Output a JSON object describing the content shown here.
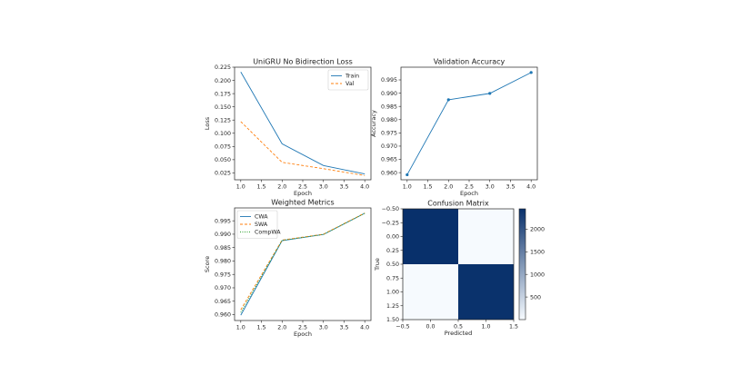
{
  "chart_data": [
    {
      "type": "line",
      "title": "UniGRU No Bidirection Loss",
      "xlabel": "Epoch",
      "ylabel": "Loss",
      "x": [
        1,
        2,
        3,
        4
      ],
      "series": [
        {
          "name": "Train",
          "values": [
            0.216,
            0.08,
            0.039,
            0.023
          ],
          "color": "#1f77b4",
          "dash": "solid"
        },
        {
          "name": "Val",
          "values": [
            0.122,
            0.045,
            0.033,
            0.02
          ],
          "color": "#ff7f0e",
          "dash": "dashed"
        }
      ],
      "xlim": [
        0.85,
        4.15
      ],
      "ylim": [
        0.012,
        0.225
      ],
      "xticks": [
        "1.0",
        "1.5",
        "2.0",
        "2.5",
        "3.0",
        "3.5",
        "4.0"
      ],
      "yticks": [
        "0.025",
        "0.050",
        "0.075",
        "0.100",
        "0.125",
        "0.150",
        "0.175",
        "0.200",
        "0.225"
      ],
      "legend": "top-right",
      "grid": false
    },
    {
      "type": "line",
      "title": "Validation Accuracy",
      "xlabel": "Epoch",
      "ylabel": "Accuracy",
      "x": [
        1,
        2,
        3,
        4
      ],
      "series": [
        {
          "values": [
            0.9592,
            0.9875,
            0.9899,
            0.9978
          ],
          "color": "#1f77b4",
          "dash": "solid",
          "markers": true
        }
      ],
      "xlim": [
        0.85,
        4.15
      ],
      "ylim": [
        0.9573,
        0.9998
      ],
      "xticks": [
        "1.0",
        "1.5",
        "2.0",
        "2.5",
        "3.0",
        "3.5",
        "4.0"
      ],
      "yticks": [
        "0.960",
        "0.965",
        "0.970",
        "0.975",
        "0.980",
        "0.985",
        "0.990",
        "0.995"
      ],
      "grid": false
    },
    {
      "type": "line",
      "title": "Weighted Metrics",
      "xlabel": "Epoch",
      "ylabel": "Score",
      "x": [
        1,
        2,
        3,
        4
      ],
      "series": [
        {
          "name": "CWA",
          "values": [
            0.9598,
            0.9876,
            0.9899,
            0.9978
          ],
          "color": "#1f77b4",
          "dash": "solid"
        },
        {
          "name": "SWA",
          "values": [
            0.9618,
            0.9878,
            0.99,
            0.9979
          ],
          "color": "#ff7f0e",
          "dash": "dashed"
        },
        {
          "name": "CompWA",
          "values": [
            0.9608,
            0.9877,
            0.9899,
            0.9978
          ],
          "color": "#2ca02c",
          "dash": "dotted"
        }
      ],
      "xlim": [
        0.85,
        4.15
      ],
      "ylim": [
        0.9578,
        0.9998
      ],
      "xticks": [
        "1.0",
        "1.5",
        "2.0",
        "2.5",
        "3.0",
        "3.5",
        "4.0"
      ],
      "yticks": [
        "0.960",
        "0.965",
        "0.970",
        "0.975",
        "0.980",
        "0.985",
        "0.990",
        "0.995"
      ],
      "legend": "top-left",
      "grid": false
    },
    {
      "type": "heatmap",
      "title": "Confusion Matrix",
      "xlabel": "Predicted",
      "ylabel": "True",
      "matrix": [
        [
          2450,
          10
        ],
        [
          12,
          2430
        ]
      ],
      "xlim": [
        -0.5,
        1.5
      ],
      "ylim": [
        1.5,
        -0.5
      ],
      "xticks": [
        "−0.5",
        "0.0",
        "0.5",
        "1.0",
        "1.5"
      ],
      "yticks": [
        "−0.50",
        "−0.25",
        "0.00",
        "0.25",
        "0.50",
        "0.75",
        "1.00",
        "1.25",
        "1.50"
      ],
      "colorbar": {
        "min": 0,
        "max": 2450,
        "ticks": [
          "500",
          "1000",
          "1500",
          "2000"
        ],
        "cmap": "Blues"
      }
    }
  ]
}
